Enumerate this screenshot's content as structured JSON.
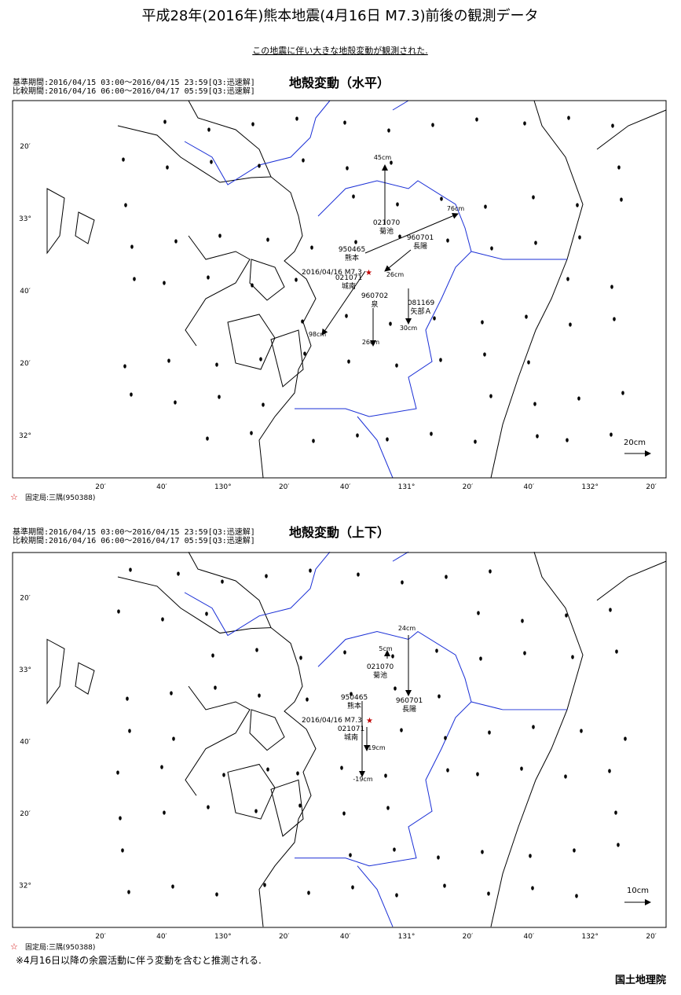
{
  "header": {
    "title": "平成28年(2016年)熊本地震(4月16日 M7.3)前後の観測データ",
    "subtitle": "この地震に伴い大きな地殻変動が観測された."
  },
  "maps": [
    {
      "period_base": "基準期間:2016/04/15 03:00～2016/04/15 23:59[Q3:迅速解]",
      "period_compare": "比較期間:2016/04/16 06:00～2016/04/17 05:59[Q3:迅速解]",
      "title": "地殻変動（水平）",
      "y_labels": [
        "20′",
        "33°",
        "40′",
        "20′",
        "32°"
      ],
      "x_labels": [
        "20′",
        "40′",
        "130°",
        "20′",
        "40′",
        "131°",
        "20′",
        "40′",
        "132°",
        "20′"
      ],
      "stations": [
        {
          "id": "021070",
          "name": "菊池"
        },
        {
          "id": "950465",
          "name": "熊本"
        },
        {
          "id": "960701",
          "name": "長陽"
        },
        {
          "id": "021071",
          "name": "城南"
        },
        {
          "id": "960702",
          "name": "泉"
        },
        {
          "id": "081169",
          "name": "矢部Ａ"
        }
      ],
      "vector_labels": [
        "45cm",
        "76cm",
        "26cm",
        "98cm",
        "26cm",
        "30cm"
      ],
      "epicenter": "2016/04/16 M7.3",
      "scale": "20cm",
      "fixed": "固定局:三隅(950388)"
    },
    {
      "period_base": "基準期間:2016/04/15 03:00～2016/04/15 23:59[Q3:迅速解]",
      "period_compare": "比較期間:2016/04/16 06:00～2016/04/17 05:59[Q3:迅速解]",
      "title": "地殻変動（上下）",
      "y_labels": [
        "20′",
        "33°",
        "40′",
        "20′",
        "32°"
      ],
      "x_labels": [
        "20′",
        "40′",
        "130°",
        "20′",
        "40′",
        "131°",
        "20′",
        "40′",
        "132°",
        "20′"
      ],
      "stations": [
        {
          "id": "021070",
          "name": "菊池"
        },
        {
          "id": "950465",
          "name": "熊本"
        },
        {
          "id": "960701",
          "name": "長陽"
        },
        {
          "id": "021071",
          "name": "城南"
        }
      ],
      "vector_labels": [
        "24cm",
        "5cm",
        "-19cm",
        "-19cm"
      ],
      "epicenter": "2016/04/16 M7.3",
      "scale": "10cm",
      "fixed": "固定局:三隅(950388)"
    }
  ],
  "footer": {
    "note": "※4月16日以降の余震活動に伴う変動を含むと推測される.",
    "org": "国土地理院"
  }
}
